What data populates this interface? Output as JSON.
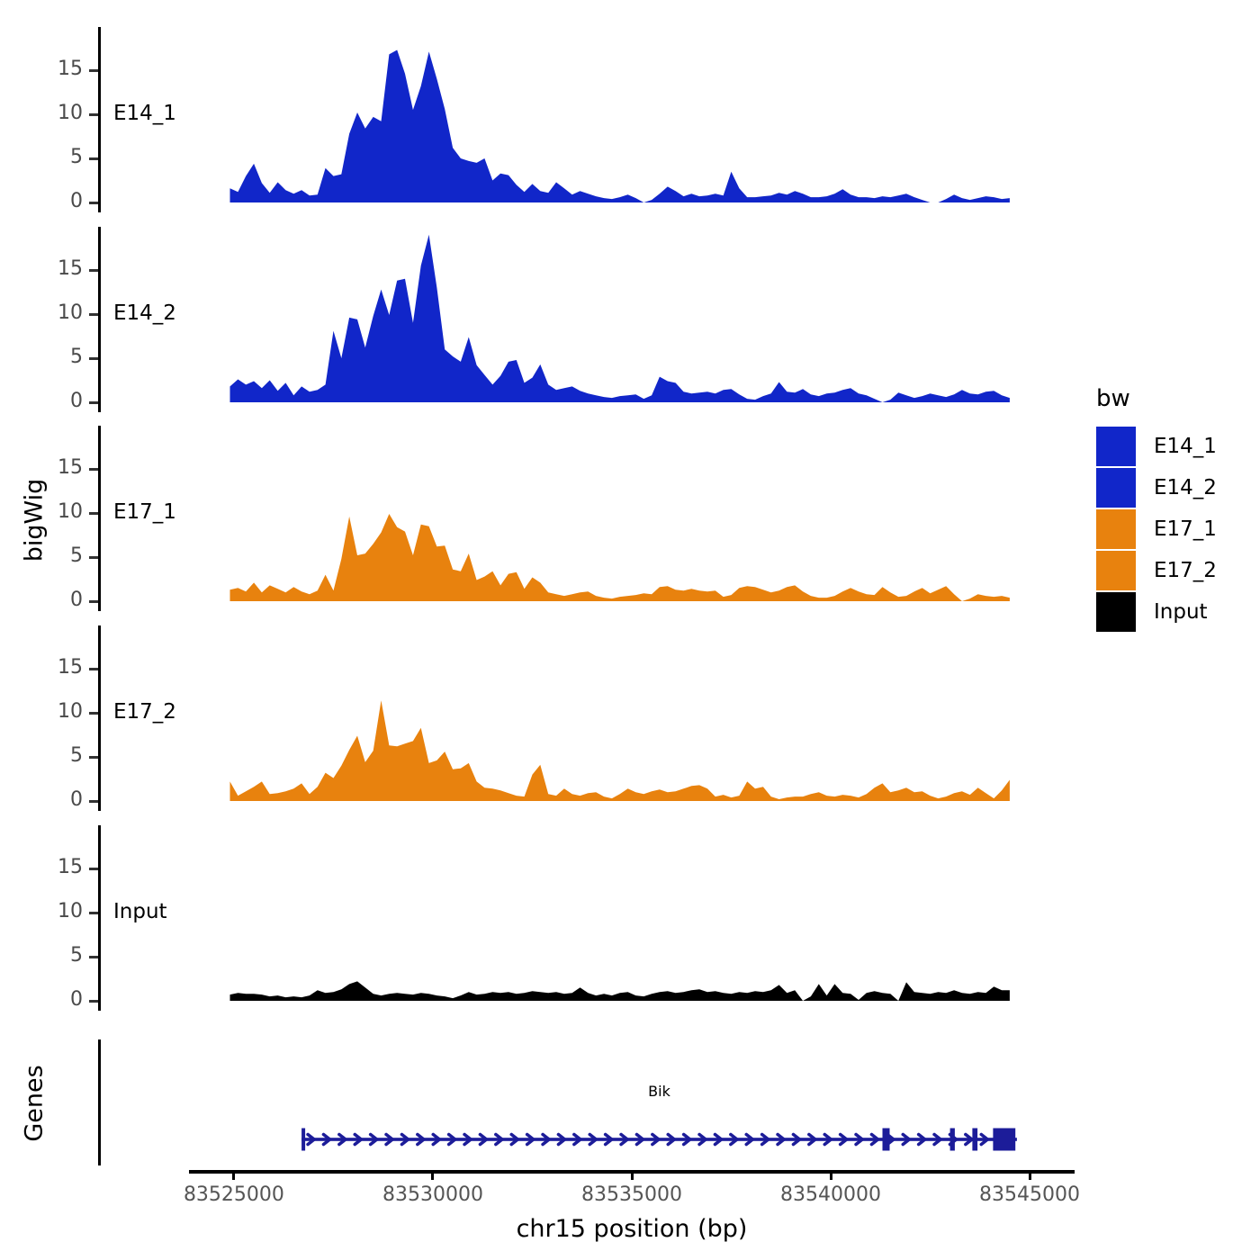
{
  "chart_data": {
    "type": "area",
    "xlabel": "chr15 position (bp)",
    "ylabel": "bigWig",
    "x_axis": {
      "range": [
        83523870,
        83546130
      ],
      "ticks": [
        83525000,
        83530000,
        83535000,
        83540000,
        83545000
      ],
      "labels": [
        "83525000",
        "83530000",
        "83535000",
        "83540000",
        "83545000"
      ]
    },
    "y_axis": {
      "ticks": [
        15,
        10,
        5,
        0
      ],
      "range": [
        0,
        19.9
      ]
    },
    "x_start": 83524900,
    "x_step": 200,
    "n_points": 99,
    "series": [
      {
        "name": "E14_1",
        "color": "#1126c9",
        "values": [
          1.6,
          1.2,
          3.0,
          4.4,
          2.2,
          1.1,
          2.3,
          1.4,
          1.0,
          1.4,
          0.8,
          0.9,
          3.9,
          3.0,
          3.2,
          7.8,
          10.2,
          8.4,
          9.7,
          9.2,
          16.8,
          17.3,
          14.6,
          10.5,
          13.2,
          17.1,
          14.0,
          10.6,
          6.2,
          5.0,
          4.7,
          4.5,
          5.0,
          2.5,
          3.3,
          3.1,
          2.0,
          1.2,
          2.1,
          1.3,
          1.1,
          2.3,
          1.6,
          0.9,
          1.3,
          1.0,
          0.7,
          0.5,
          0.4,
          0.6,
          0.9,
          0.5,
          0.0,
          0.3,
          1.0,
          1.8,
          1.3,
          0.7,
          1.0,
          0.7,
          0.8,
          1.0,
          0.8,
          3.5,
          1.6,
          0.6,
          0.6,
          0.7,
          0.8,
          1.1,
          0.9,
          1.3,
          1.0,
          0.6,
          0.6,
          0.7,
          1.0,
          1.5,
          0.9,
          0.6,
          0.6,
          0.5,
          0.7,
          0.6,
          0.8,
          1.0,
          0.6,
          0.3,
          0.0,
          0.0,
          0.4,
          0.9,
          0.5,
          0.3,
          0.5,
          0.7,
          0.6,
          0.4,
          0.5
        ]
      },
      {
        "name": "E14_2",
        "color": "#1126c9",
        "values": [
          1.8,
          2.6,
          2.0,
          2.4,
          1.6,
          2.5,
          1.3,
          2.2,
          0.8,
          1.8,
          1.2,
          1.4,
          2.0,
          8.1,
          5.0,
          9.6,
          9.4,
          6.2,
          9.8,
          12.8,
          9.9,
          13.8,
          14.0,
          9.0,
          15.5,
          19.0,
          13.0,
          6.0,
          5.2,
          4.6,
          7.4,
          4.2,
          3.1,
          2.0,
          3.0,
          4.6,
          4.8,
          2.2,
          2.8,
          4.3,
          2.0,
          1.4,
          1.6,
          1.8,
          1.3,
          1.0,
          0.8,
          0.6,
          0.5,
          0.7,
          0.8,
          0.9,
          0.4,
          0.8,
          2.9,
          2.4,
          2.2,
          1.2,
          1.0,
          1.1,
          1.2,
          1.0,
          1.4,
          1.5,
          0.9,
          0.4,
          0.3,
          0.7,
          1.0,
          2.3,
          1.2,
          1.1,
          1.5,
          0.9,
          0.7,
          1.0,
          1.1,
          1.4,
          1.6,
          1.0,
          0.8,
          0.4,
          0.0,
          0.3,
          1.1,
          0.8,
          0.5,
          0.7,
          1.0,
          0.8,
          0.6,
          0.9,
          1.4,
          1.0,
          0.9,
          1.2,
          1.3,
          0.8,
          0.5
        ]
      },
      {
        "name": "E17_1",
        "color": "#e8820e",
        "values": [
          1.3,
          1.5,
          1.1,
          2.1,
          1.0,
          1.8,
          1.4,
          1.0,
          1.6,
          1.1,
          0.8,
          1.2,
          3.0,
          1.2,
          4.8,
          9.6,
          5.2,
          5.4,
          6.5,
          7.8,
          9.9,
          8.4,
          7.9,
          5.2,
          8.7,
          8.5,
          6.2,
          6.3,
          3.6,
          3.4,
          5.4,
          2.4,
          2.8,
          3.4,
          1.8,
          3.1,
          3.3,
          1.4,
          2.7,
          2.1,
          1.0,
          0.8,
          0.6,
          0.8,
          1.0,
          1.1,
          0.6,
          0.4,
          0.3,
          0.5,
          0.6,
          0.7,
          0.9,
          0.8,
          1.6,
          1.7,
          1.3,
          1.2,
          1.4,
          1.2,
          1.1,
          1.2,
          0.5,
          0.7,
          1.5,
          1.7,
          1.6,
          1.3,
          1.0,
          1.2,
          1.6,
          1.8,
          1.1,
          0.6,
          0.4,
          0.4,
          0.6,
          1.1,
          1.5,
          1.1,
          0.8,
          0.7,
          1.6,
          1.0,
          0.5,
          0.6,
          1.1,
          1.5,
          0.9,
          1.3,
          1.7,
          0.8,
          0.0,
          0.3,
          0.8,
          0.6,
          0.5,
          0.6,
          0.4
        ]
      },
      {
        "name": "E17_2",
        "color": "#e8820e",
        "values": [
          2.2,
          0.6,
          1.1,
          1.6,
          2.2,
          0.8,
          0.9,
          1.1,
          1.4,
          2.0,
          0.8,
          1.6,
          3.2,
          2.6,
          4.0,
          5.8,
          7.4,
          4.4,
          5.7,
          11.4,
          6.3,
          6.2,
          6.5,
          6.8,
          8.3,
          4.3,
          4.6,
          5.6,
          3.6,
          3.7,
          4.3,
          2.2,
          1.5,
          1.4,
          1.2,
          0.9,
          0.6,
          0.5,
          3.0,
          4.1,
          0.8,
          0.6,
          1.4,
          0.8,
          0.6,
          0.9,
          1.0,
          0.5,
          0.3,
          0.8,
          1.4,
          1.0,
          0.8,
          1.1,
          1.3,
          1.0,
          1.1,
          1.4,
          1.7,
          1.8,
          1.4,
          0.5,
          0.7,
          0.4,
          0.6,
          2.2,
          1.4,
          1.6,
          0.5,
          0.2,
          0.4,
          0.5,
          0.5,
          0.8,
          1.0,
          0.6,
          0.5,
          0.7,
          0.6,
          0.4,
          0.8,
          1.5,
          2.0,
          1.0,
          1.2,
          1.5,
          1.0,
          1.1,
          0.6,
          0.3,
          0.5,
          0.9,
          1.1,
          0.7,
          1.5,
          0.9,
          0.3,
          1.2,
          2.4
        ]
      },
      {
        "name": "Input",
        "color": "#000000",
        "values": [
          0.7,
          0.9,
          0.8,
          0.8,
          0.7,
          0.5,
          0.6,
          0.4,
          0.5,
          0.4,
          0.6,
          1.2,
          0.9,
          1.0,
          1.3,
          1.9,
          2.2,
          1.5,
          0.8,
          0.6,
          0.8,
          0.9,
          0.8,
          0.7,
          0.9,
          0.8,
          0.6,
          0.5,
          0.3,
          0.6,
          1.0,
          0.7,
          0.8,
          1.0,
          0.9,
          1.0,
          0.8,
          0.9,
          1.1,
          1.0,
          0.9,
          1.0,
          0.8,
          0.9,
          1.5,
          0.9,
          0.6,
          0.8,
          0.6,
          0.9,
          1.0,
          0.6,
          0.5,
          0.8,
          1.0,
          1.1,
          0.9,
          1.0,
          1.2,
          1.3,
          1.0,
          1.1,
          0.9,
          0.8,
          1.0,
          0.9,
          1.1,
          1.0,
          1.2,
          1.8,
          0.9,
          1.2,
          0.0,
          0.5,
          1.9,
          0.6,
          1.9,
          0.9,
          0.8,
          0.1,
          0.9,
          1.1,
          0.9,
          0.8,
          0.0,
          2.1,
          1.0,
          0.9,
          0.8,
          1.0,
          0.9,
          1.2,
          0.9,
          0.8,
          1.0,
          0.9,
          1.6,
          1.2,
          1.2
        ]
      }
    ],
    "gene_track": {
      "label": "Genes",
      "gene": {
        "name": "Bik",
        "chrom": "chr15",
        "strand": "+",
        "start": 83526700,
        "end": 83544680,
        "color": "#1c1c99",
        "exons": [
          [
            83526700,
            83526790
          ],
          [
            83541300,
            83541480
          ],
          [
            83543000,
            83543120
          ],
          [
            83543560,
            83543690
          ],
          [
            83544080,
            83544640
          ]
        ]
      }
    },
    "legend": {
      "title": "bw",
      "entries": [
        {
          "label": "E14_1",
          "color": "#1126c9"
        },
        {
          "label": "E14_2",
          "color": "#1126c9"
        },
        {
          "label": "E17_1",
          "color": "#e8820e"
        },
        {
          "label": "E17_2",
          "color": "#e8820e"
        },
        {
          "label": "Input",
          "color": "#000000"
        }
      ]
    }
  }
}
